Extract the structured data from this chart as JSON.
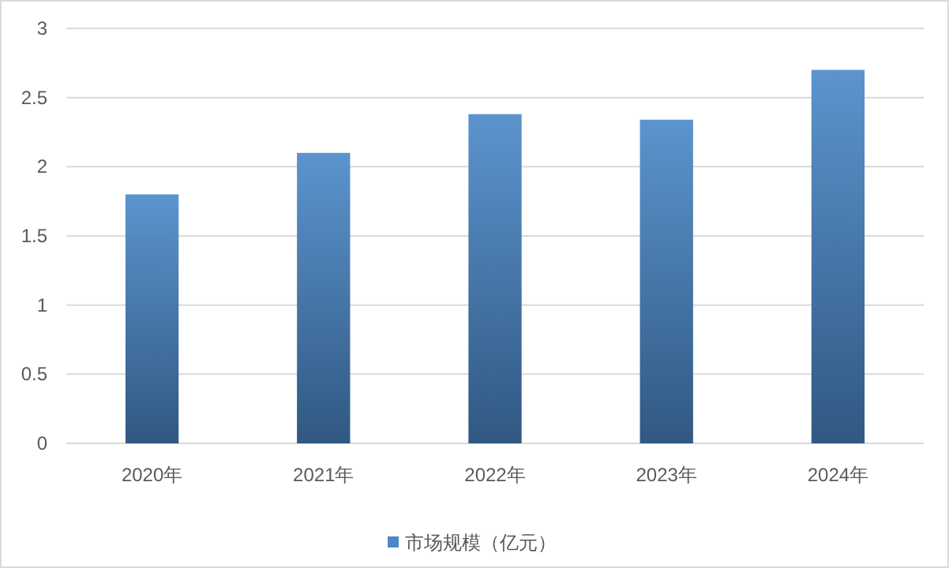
{
  "chart_data": {
    "type": "bar",
    "categories": [
      "2020年",
      "2021年",
      "2022年",
      "2023年",
      "2024年"
    ],
    "series": [
      {
        "name": "市场规模（亿元）",
        "color": "#4a88c8",
        "values": [
          1.8,
          2.1,
          2.38,
          2.34,
          2.7
        ]
      }
    ],
    "ylim": [
      0,
      3
    ],
    "yticks": [
      0,
      0.5,
      1,
      1.5,
      2,
      2.5,
      3
    ],
    "grid": "y",
    "legend": "bottom"
  }
}
